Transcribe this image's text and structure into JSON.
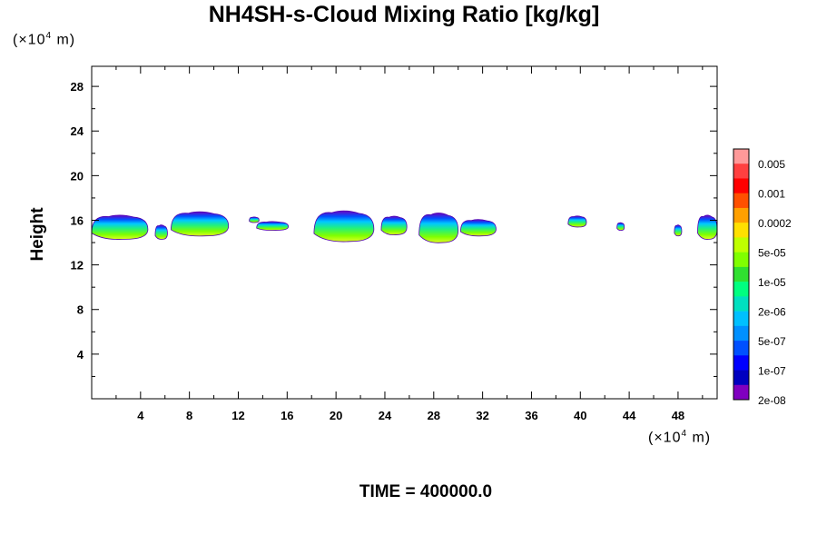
{
  "chart_data": {
    "type": "heatmap",
    "title": "NH4SH-s-Cloud Mixing Ratio [kg/kg]",
    "ylabel": "Height",
    "x_unit_prefix": "(×10",
    "x_unit_exp": "4",
    "x_unit_suffix": " m)",
    "y_unit_prefix": "(×10",
    "y_unit_exp": "4",
    "y_unit_suffix": " m)",
    "xlim": [
      0,
      51.2
    ],
    "ylim": [
      0,
      29.8
    ],
    "x_ticks": [
      4,
      8,
      12,
      16,
      20,
      24,
      28,
      32,
      36,
      40,
      44,
      48
    ],
    "y_ticks": [
      4,
      8,
      12,
      16,
      20,
      24,
      28
    ],
    "footer": "TIME = 400000.0",
    "colorbar": {
      "colors": [
        "#ff9999",
        "#ff4040",
        "#ff0000",
        "#ff5000",
        "#ffa000",
        "#ffe000",
        "#c0ff00",
        "#80ff00",
        "#30e030",
        "#00ff80",
        "#00e0c0",
        "#00c0ff",
        "#0090ff",
        "#0050ff",
        "#0000ff",
        "#0000c0",
        "#8000c0"
      ],
      "labels": [
        "0.005",
        "0.001",
        "0.0002",
        "5e-05",
        "1e-05",
        "2e-06",
        "5e-07",
        "1e-07",
        "2e-08"
      ]
    },
    "clouds": [
      {
        "x0": 0.0,
        "x1": 4.6,
        "ybot": 14.3,
        "ytop": 16.5
      },
      {
        "x0": 5.2,
        "x1": 6.2,
        "ybot": 14.3,
        "ytop": 15.6
      },
      {
        "x0": 6.5,
        "x1": 11.2,
        "ybot": 14.6,
        "ytop": 16.8
      },
      {
        "x0": 12.9,
        "x1": 13.7,
        "ybot": 15.8,
        "ytop": 16.3
      },
      {
        "x0": 13.5,
        "x1": 16.1,
        "ybot": 15.1,
        "ytop": 15.9
      },
      {
        "x0": 18.2,
        "x1": 23.1,
        "ybot": 14.1,
        "ytop": 16.9
      },
      {
        "x0": 23.7,
        "x1": 25.8,
        "ybot": 14.7,
        "ytop": 16.4
      },
      {
        "x0": 26.8,
        "x1": 30.0,
        "ybot": 14.0,
        "ytop": 16.7
      },
      {
        "x0": 30.2,
        "x1": 33.1,
        "ybot": 14.6,
        "ytop": 16.1
      },
      {
        "x0": 39.0,
        "x1": 40.5,
        "ybot": 15.4,
        "ytop": 16.4
      },
      {
        "x0": 43.0,
        "x1": 43.6,
        "ybot": 15.1,
        "ytop": 15.8
      },
      {
        "x0": 47.7,
        "x1": 48.3,
        "ybot": 14.6,
        "ytop": 15.6
      },
      {
        "x0": 49.6,
        "x1": 51.2,
        "ybot": 14.3,
        "ytop": 16.5
      }
    ]
  }
}
